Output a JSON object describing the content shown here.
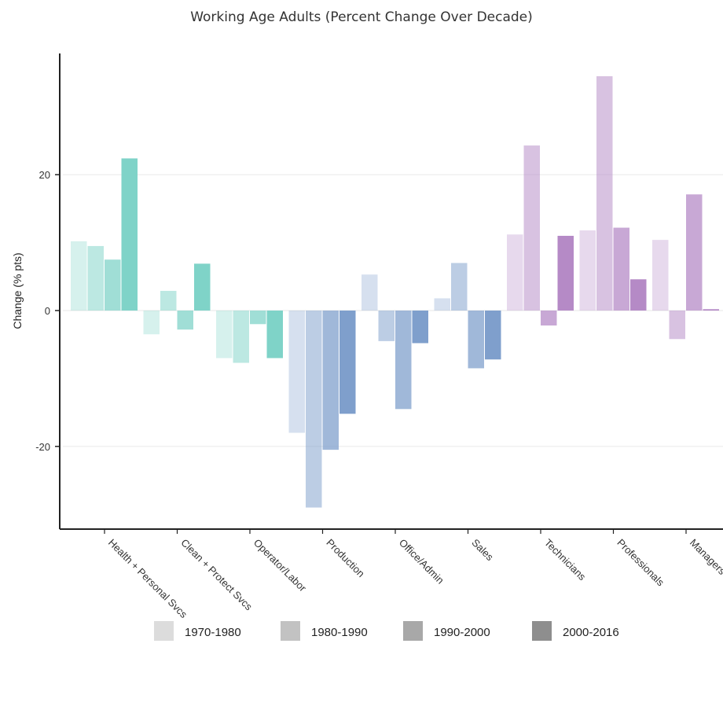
{
  "chart_data": {
    "type": "bar",
    "title": "Working Age Adults (Percent Change Over Decade)",
    "xlabel": "",
    "ylabel": "Change (% pts)",
    "ylim": [
      -32,
      38
    ],
    "yticks": [
      -20,
      0,
      20
    ],
    "grid": true,
    "legend_position": "bottom",
    "categories": [
      "Health + Personal Svcs",
      "Clean + Protect Svcs",
      "Operator/Labor",
      "Production",
      "Office/Admin",
      "Sales",
      "Technicians",
      "Professionals",
      "Managers"
    ],
    "series": [
      {
        "name": "1970-1980",
        "values": [
          10.2,
          -3.5,
          -7.0,
          -18.0,
          5.3,
          1.8,
          11.2,
          11.8,
          10.4
        ]
      },
      {
        "name": "1980-1990",
        "values": [
          9.5,
          2.9,
          -7.7,
          -29.0,
          -4.5,
          7.0,
          24.3,
          34.5,
          -4.2
        ]
      },
      {
        "name": "1990-2000",
        "values": [
          7.5,
          -2.8,
          -2.0,
          -20.5,
          -14.5,
          -8.5,
          -2.2,
          12.2,
          17.1
        ]
      },
      {
        "name": "2000-2016",
        "values": [
          22.4,
          6.9,
          -7.0,
          -15.2,
          -4.8,
          -7.2,
          11.0,
          4.6,
          0.2
        ]
      }
    ],
    "category_colors": [
      "#7fd3c8",
      "#7fd3c8",
      "#7fd3c8",
      "#7f9fcc",
      "#7f9fcc",
      "#7f9fcc",
      "#b58ac6",
      "#b58ac6",
      "#b58ac6"
    ],
    "series_opacity": [
      0.32,
      0.52,
      0.74,
      1.0
    ],
    "legend_colors": [
      "#dcdcdc",
      "#c2c2c2",
      "#a8a8a8",
      "#8e8e8e"
    ]
  }
}
